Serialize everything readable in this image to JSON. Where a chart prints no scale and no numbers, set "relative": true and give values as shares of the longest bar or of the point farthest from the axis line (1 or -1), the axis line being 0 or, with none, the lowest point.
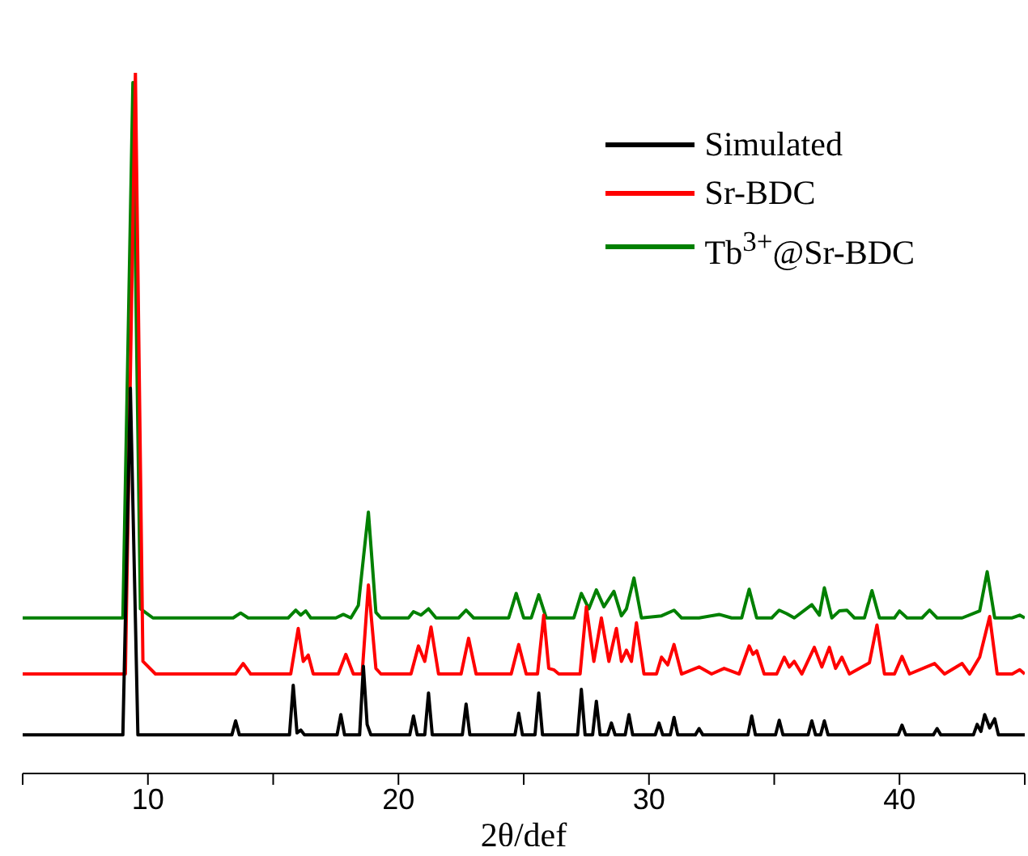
{
  "chart_data": {
    "type": "line",
    "relative": true,
    "xlabel": "2θ/def",
    "xlim": [
      5,
      45
    ],
    "xticks": [
      {
        "value": 5,
        "label": null
      },
      10,
      {
        "value": 15,
        "label": null
      },
      20,
      {
        "value": 25,
        "label": null
      },
      30,
      {
        "value": 35,
        "label": null
      },
      40,
      {
        "value": 45,
        "label": null
      }
    ],
    "legend": "top right",
    "marker": "none",
    "line_style": "solid",
    "grid": false,
    "tick_labels": "x",
    "series": [
      {
        "name": "Simulated",
        "color": "#000000",
        "x": [
          5,
          9.0,
          9.3,
          9.6,
          13.35,
          13.5,
          13.65,
          15.65,
          15.8,
          15.95,
          16.1,
          16.25,
          17.55,
          17.7,
          17.85,
          18.45,
          18.6,
          18.75,
          18.9,
          20.45,
          20.6,
          20.75,
          21.05,
          21.2,
          21.35,
          22.55,
          22.7,
          22.85,
          24.65,
          24.8,
          24.95,
          25.45,
          25.6,
          25.75,
          27.15,
          27.3,
          27.45,
          27.75,
          27.9,
          28.05,
          28.35,
          28.5,
          28.65,
          29.05,
          29.2,
          29.35,
          30.25,
          30.4,
          30.55,
          30.85,
          31.0,
          31.15,
          31.85,
          32.0,
          32.15,
          33.95,
          34.1,
          34.25,
          35.05,
          35.2,
          35.35,
          36.35,
          36.5,
          36.65,
          36.85,
          37.0,
          37.15,
          39.95,
          40.1,
          40.25,
          41.35,
          41.5,
          41.65,
          42.95,
          43.1,
          43.25,
          43.4,
          43.6,
          43.8,
          43.95,
          45
        ],
        "values": [
          0.055,
          0.055,
          0.55,
          0.055,
          0.055,
          0.075,
          0.055,
          0.055,
          0.126,
          0.058,
          0.062,
          0.055,
          0.055,
          0.084,
          0.055,
          0.055,
          0.153,
          0.07,
          0.055,
          0.055,
          0.082,
          0.055,
          0.055,
          0.115,
          0.055,
          0.055,
          0.099,
          0.055,
          0.055,
          0.086,
          0.055,
          0.055,
          0.115,
          0.055,
          0.055,
          0.12,
          0.055,
          0.055,
          0.103,
          0.055,
          0.055,
          0.072,
          0.055,
          0.055,
          0.084,
          0.055,
          0.055,
          0.072,
          0.055,
          0.055,
          0.08,
          0.055,
          0.055,
          0.064,
          0.055,
          0.055,
          0.082,
          0.055,
          0.055,
          0.076,
          0.055,
          0.055,
          0.075,
          0.055,
          0.055,
          0.075,
          0.055,
          0.055,
          0.069,
          0.055,
          0.055,
          0.064,
          0.055,
          0.055,
          0.07,
          0.06,
          0.084,
          0.065,
          0.078,
          0.055,
          0.055
        ]
      },
      {
        "name": "Sr-BDC",
        "color": "#ff0000",
        "x": [
          5,
          9.1,
          9.5,
          9.8,
          10.3,
          13.5,
          13.8,
          14.1,
          15.7,
          16.0,
          16.2,
          16.4,
          16.6,
          17.6,
          17.9,
          18.2,
          18.55,
          18.8,
          19.1,
          19.3,
          20.5,
          20.8,
          21.05,
          21.3,
          21.6,
          22.5,
          22.8,
          23.1,
          24.5,
          24.8,
          25.1,
          25.55,
          25.8,
          26.0,
          26.2,
          26.4,
          27.25,
          27.5,
          27.8,
          28.1,
          28.4,
          28.7,
          28.9,
          29.1,
          29.3,
          29.5,
          29.8,
          30.3,
          30.5,
          30.75,
          31.0,
          31.3,
          32.0,
          32.5,
          33.0,
          33.6,
          34.0,
          34.15,
          34.3,
          34.6,
          35.1,
          35.4,
          35.6,
          35.8,
          36.1,
          36.6,
          36.9,
          37.2,
          37.45,
          37.7,
          38.0,
          38.8,
          39.1,
          39.4,
          39.8,
          40.1,
          40.4,
          41.4,
          41.8,
          42.5,
          42.8,
          43.2,
          43.6,
          43.9,
          44.5,
          44.8,
          45
        ],
        "values": [
          0.142,
          0.142,
          1.0,
          0.16,
          0.142,
          0.142,
          0.157,
          0.142,
          0.142,
          0.207,
          0.16,
          0.169,
          0.142,
          0.142,
          0.17,
          0.142,
          0.142,
          0.269,
          0.15,
          0.142,
          0.142,
          0.182,
          0.16,
          0.209,
          0.142,
          0.142,
          0.193,
          0.142,
          0.142,
          0.184,
          0.142,
          0.142,
          0.226,
          0.15,
          0.148,
          0.142,
          0.142,
          0.238,
          0.16,
          0.222,
          0.16,
          0.207,
          0.16,
          0.176,
          0.16,
          0.215,
          0.142,
          0.142,
          0.166,
          0.155,
          0.184,
          0.142,
          0.152,
          0.142,
          0.15,
          0.142,
          0.182,
          0.17,
          0.175,
          0.142,
          0.142,
          0.166,
          0.152,
          0.16,
          0.142,
          0.18,
          0.152,
          0.18,
          0.15,
          0.166,
          0.142,
          0.158,
          0.212,
          0.142,
          0.142,
          0.167,
          0.142,
          0.157,
          0.142,
          0.157,
          0.142,
          0.166,
          0.224,
          0.142,
          0.142,
          0.148,
          0.142
        ]
      },
      {
        "name": "Tb$^{3+}$@Sr-BDC",
        "color": "#008000",
        "x": [
          5,
          9.0,
          9.4,
          9.7,
          10.2,
          13.4,
          13.7,
          14.0,
          15.6,
          15.9,
          16.1,
          16.3,
          16.5,
          17.5,
          17.8,
          18.1,
          18.4,
          18.6,
          18.8,
          19.1,
          19.3,
          20.4,
          20.6,
          20.9,
          21.2,
          21.5,
          22.4,
          22.7,
          23.0,
          24.4,
          24.7,
          25.0,
          25.3,
          25.6,
          25.9,
          27.0,
          27.3,
          27.6,
          27.9,
          28.2,
          28.6,
          28.9,
          29.1,
          29.4,
          29.7,
          30.5,
          31.0,
          31.3,
          32.0,
          32.8,
          33.3,
          33.7,
          34.0,
          34.3,
          34.9,
          35.2,
          35.5,
          35.8,
          36.5,
          36.8,
          37.0,
          37.3,
          37.6,
          37.9,
          38.2,
          38.6,
          38.9,
          39.2,
          39.8,
          40.0,
          40.3,
          40.9,
          41.2,
          41.5,
          42.5,
          43.2,
          43.5,
          43.8,
          44.5,
          44.8,
          45
        ],
        "values": [
          0.222,
          0.222,
          0.986,
          0.235,
          0.222,
          0.222,
          0.229,
          0.222,
          0.222,
          0.233,
          0.226,
          0.232,
          0.222,
          0.222,
          0.227,
          0.222,
          0.24,
          0.307,
          0.373,
          0.23,
          0.222,
          0.222,
          0.231,
          0.226,
          0.235,
          0.222,
          0.222,
          0.233,
          0.222,
          0.222,
          0.257,
          0.222,
          0.222,
          0.255,
          0.222,
          0.222,
          0.257,
          0.235,
          0.262,
          0.238,
          0.26,
          0.225,
          0.235,
          0.279,
          0.222,
          0.225,
          0.233,
          0.222,
          0.222,
          0.227,
          0.222,
          0.222,
          0.263,
          0.222,
          0.222,
          0.233,
          0.228,
          0.222,
          0.241,
          0.226,
          0.265,
          0.222,
          0.232,
          0.233,
          0.222,
          0.222,
          0.261,
          0.222,
          0.222,
          0.232,
          0.222,
          0.222,
          0.233,
          0.222,
          0.222,
          0.232,
          0.288,
          0.222,
          0.222,
          0.226,
          0.222
        ]
      }
    ]
  }
}
